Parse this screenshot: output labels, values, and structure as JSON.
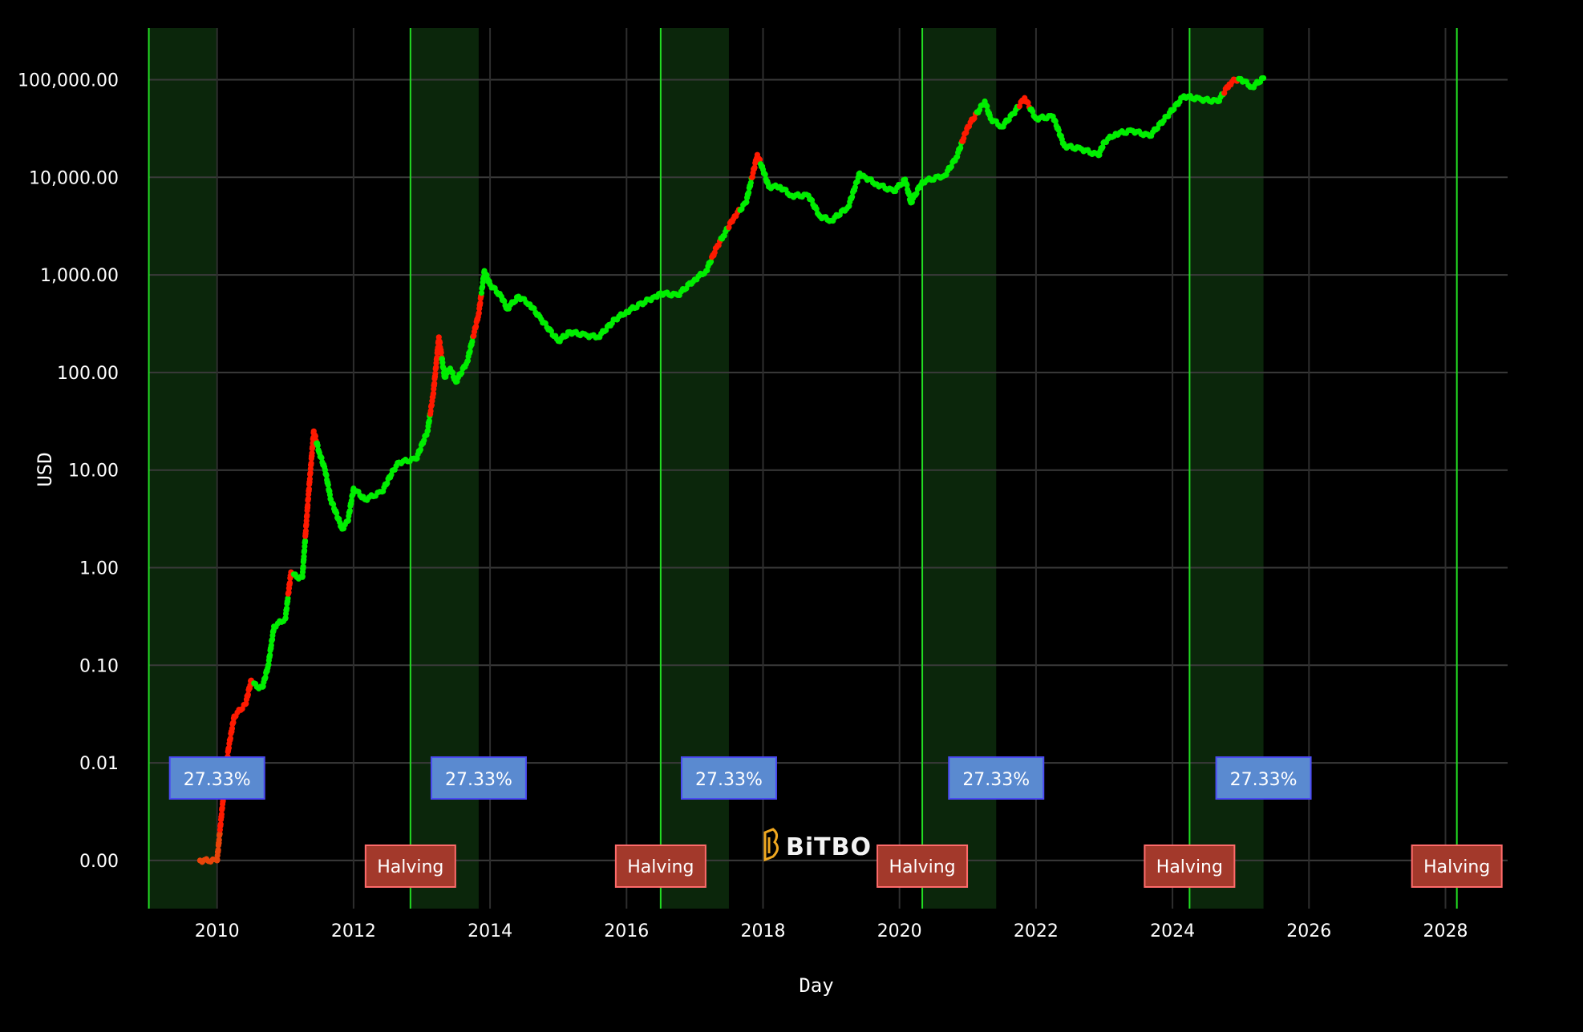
{
  "chart_data": {
    "type": "scatter",
    "xlabel": "Day",
    "ylabel": "USD",
    "y_scale": "log",
    "ylim": [
      0.0003,
      400000
    ],
    "xlim": [
      "2008-08",
      "2028-11"
    ],
    "grid": true,
    "y_ticks": [
      {
        "value": 100000,
        "label": "100,000.00"
      },
      {
        "value": 10000,
        "label": "10,000.00"
      },
      {
        "value": 1000,
        "label": "1,000.00"
      },
      {
        "value": 100,
        "label": "100.00"
      },
      {
        "value": 10,
        "label": "10.00"
      },
      {
        "value": 1,
        "label": "1.00"
      },
      {
        "value": 0.1,
        "label": "0.10"
      },
      {
        "value": 0.01,
        "label": "0.01"
      },
      {
        "value": 0.001,
        "label": "0.00"
      }
    ],
    "x_ticks": [
      "2010",
      "2012",
      "2014",
      "2016",
      "2018",
      "2020",
      "2022",
      "2024",
      "2026",
      "2028"
    ],
    "colors": {
      "rise": "#ff1a00",
      "normal": "#00ee00",
      "early": "#e8450a",
      "halving_line": "#22dd22",
      "shade": "#0b260b",
      "halving_box": "#a3392b",
      "halving_border": "#ff6b6b",
      "pct_box": "#5a8ad0",
      "pct_border": "#4a4af2",
      "logo": "#f0a820"
    },
    "halvings": [
      {
        "date": "2009-01",
        "label": ""
      },
      {
        "date": "2012-11",
        "label": "Halving"
      },
      {
        "date": "2016-07",
        "label": "Halving"
      },
      {
        "date": "2020-05",
        "label": "Halving"
      },
      {
        "date": "2024-04",
        "label": "Halving"
      },
      {
        "date": "2028-03",
        "label": "Halving"
      }
    ],
    "shaded_regions": [
      {
        "start": "2009-01",
        "end": "2010-01",
        "label": "27.33%"
      },
      {
        "start": "2012-11",
        "end": "2013-11",
        "label": "27.33%"
      },
      {
        "start": "2016-07",
        "end": "2017-07",
        "label": "27.33%"
      },
      {
        "start": "2020-05",
        "end": "2021-06",
        "label": "27.33%"
      },
      {
        "start": "2024-04",
        "end": "2025-05",
        "label": "27.33%"
      }
    ],
    "series": [
      {
        "points": [
          [
            "2009-10",
            0.001,
            "o"
          ],
          [
            "2010-01",
            0.001,
            "o"
          ],
          [
            "2010-02",
            0.004,
            "r"
          ],
          [
            "2010-03",
            0.014,
            "r"
          ],
          [
            "2010-04",
            0.03,
            "r"
          ],
          [
            "2010-06",
            0.04,
            "r"
          ],
          [
            "2010-07",
            0.07,
            "r"
          ],
          [
            "2010-08",
            0.06,
            "g"
          ],
          [
            "2010-09",
            0.06,
            "g"
          ],
          [
            "2010-10",
            0.1,
            "g"
          ],
          [
            "2010-11",
            0.25,
            "g"
          ],
          [
            "2011-01",
            0.3,
            "g"
          ],
          [
            "2011-02",
            0.9,
            "r"
          ],
          [
            "2011-03",
            0.8,
            "g"
          ],
          [
            "2011-04",
            0.8,
            "g"
          ],
          [
            "2011-05",
            5,
            "r"
          ],
          [
            "2011-06",
            25,
            "r"
          ],
          [
            "2011-07",
            15,
            "g"
          ],
          [
            "2011-08",
            10,
            "g"
          ],
          [
            "2011-09",
            5,
            "g"
          ],
          [
            "2011-11",
            2.5,
            "g"
          ],
          [
            "2011-12",
            3,
            "g"
          ],
          [
            "2012-01",
            6.5,
            "g"
          ],
          [
            "2012-03",
            5,
            "g"
          ],
          [
            "2012-06",
            6,
            "g"
          ],
          [
            "2012-08",
            10,
            "g"
          ],
          [
            "2012-09",
            12,
            "g"
          ],
          [
            "2012-12",
            13,
            "g"
          ],
          [
            "2013-02",
            25,
            "g"
          ],
          [
            "2013-03",
            60,
            "r"
          ],
          [
            "2013-04",
            230,
            "r"
          ],
          [
            "2013-05",
            90,
            "g"
          ],
          [
            "2013-06",
            110,
            "g"
          ],
          [
            "2013-07",
            80,
            "g"
          ],
          [
            "2013-09",
            130,
            "g"
          ],
          [
            "2013-11",
            400,
            "r"
          ],
          [
            "2013-12",
            1100,
            "g"
          ],
          [
            "2014-01",
            800,
            "g"
          ],
          [
            "2014-03",
            600,
            "g"
          ],
          [
            "2014-04",
            450,
            "g"
          ],
          [
            "2014-06",
            600,
            "g"
          ],
          [
            "2014-08",
            500,
            "g"
          ],
          [
            "2014-10",
            350,
            "g"
          ],
          [
            "2015-01",
            210,
            "g"
          ],
          [
            "2015-03",
            260,
            "g"
          ],
          [
            "2015-06",
            240,
            "g"
          ],
          [
            "2015-08",
            230,
            "g"
          ],
          [
            "2015-11",
            350,
            "g"
          ],
          [
            "2016-01",
            420,
            "g"
          ],
          [
            "2016-06",
            600,
            "g"
          ],
          [
            "2016-07",
            650,
            "g"
          ],
          [
            "2016-10",
            620,
            "g"
          ],
          [
            "2017-01",
            900,
            "g"
          ],
          [
            "2017-03",
            1100,
            "g"
          ],
          [
            "2017-05",
            2000,
            "r"
          ],
          [
            "2017-06",
            2500,
            "g"
          ],
          [
            "2017-08",
            4000,
            "r"
          ],
          [
            "2017-10",
            5500,
            "g"
          ],
          [
            "2017-12",
            17000,
            "r"
          ],
          [
            "2018-01",
            12000,
            "g"
          ],
          [
            "2018-02",
            8000,
            "g"
          ],
          [
            "2018-04",
            8000,
            "g"
          ],
          [
            "2018-06",
            6500,
            "g"
          ],
          [
            "2018-09",
            6500,
            "g"
          ],
          [
            "2018-11",
            4000,
            "g"
          ],
          [
            "2019-01",
            3600,
            "g"
          ],
          [
            "2019-04",
            5000,
            "g"
          ],
          [
            "2019-06",
            11000,
            "g"
          ],
          [
            "2019-07",
            10000,
            "g"
          ],
          [
            "2019-09",
            8500,
            "g"
          ],
          [
            "2019-12",
            7200,
            "g"
          ],
          [
            "2020-02",
            9500,
            "g"
          ],
          [
            "2020-03",
            5500,
            "g"
          ],
          [
            "2020-05",
            9000,
            "g"
          ],
          [
            "2020-09",
            10500,
            "g"
          ],
          [
            "2020-11",
            16000,
            "g"
          ],
          [
            "2021-01",
            33000,
            "r"
          ],
          [
            "2021-04",
            60000,
            "g"
          ],
          [
            "2021-05",
            40000,
            "g"
          ],
          [
            "2021-07",
            33000,
            "g"
          ],
          [
            "2021-09",
            45000,
            "g"
          ],
          [
            "2021-11",
            65000,
            "r"
          ],
          [
            "2022-01",
            40000,
            "g"
          ],
          [
            "2022-04",
            42000,
            "g"
          ],
          [
            "2022-06",
            21000,
            "g"
          ],
          [
            "2022-09",
            19500,
            "g"
          ],
          [
            "2022-12",
            16800,
            "g"
          ],
          [
            "2023-01",
            23000,
            "g"
          ],
          [
            "2023-03",
            28000,
            "g"
          ],
          [
            "2023-06",
            30000,
            "g"
          ],
          [
            "2023-09",
            26500,
            "g"
          ],
          [
            "2023-12",
            42000,
            "g"
          ],
          [
            "2024-03",
            68000,
            "g"
          ],
          [
            "2024-06",
            63000,
            "g"
          ],
          [
            "2024-09",
            60000,
            "g"
          ],
          [
            "2024-11",
            90000,
            "r"
          ],
          [
            "2024-12",
            100000,
            "r"
          ],
          [
            "2025-01",
            102000,
            "g"
          ],
          [
            "2025-03",
            84000,
            "g"
          ],
          [
            "2025-05",
            104000,
            "g"
          ]
        ]
      }
    ]
  },
  "watermark": {
    "text": "BiTBO"
  }
}
